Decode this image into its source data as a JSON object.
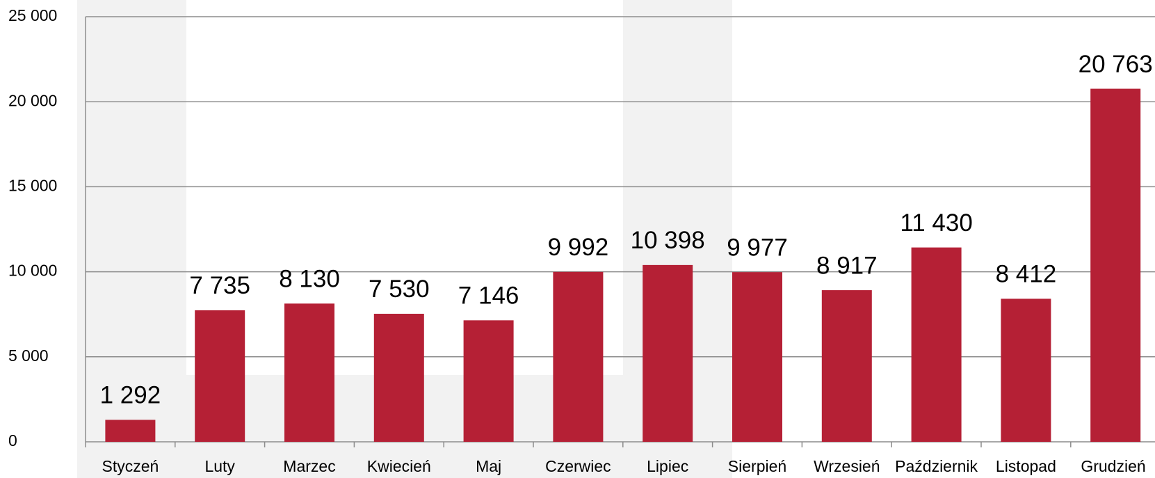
{
  "chart_data": {
    "type": "bar",
    "categories": [
      "Styczeń",
      "Luty",
      "Marzec",
      "Kwiecień",
      "Maj",
      "Czerwiec",
      "Lipiec",
      "Sierpień",
      "Wrzesień",
      "Październik",
      "Listopad",
      "Grudzień"
    ],
    "values": [
      1292,
      7735,
      8130,
      7530,
      7146,
      9992,
      10398,
      9977,
      8917,
      11430,
      8412,
      20763
    ],
    "value_labels": [
      "1 292",
      "7 735",
      "8 130",
      "7 530",
      "7 146",
      "9 992",
      "10 398",
      "9 977",
      "8 917",
      "11 430",
      "8 412",
      "20 763"
    ],
    "color": "#b52035",
    "ylim": [
      0,
      25000
    ],
    "yticks": [
      0,
      {
        "value": 5000,
        "label": "5 000"
      },
      {
        "value": 10000,
        "label": "10 000"
      },
      {
        "value": 15000,
        "label": "15 000"
      },
      {
        "value": 20000,
        "label": "20 000"
      },
      {
        "value": 25000,
        "label": "25 000"
      }
    ],
    "grid": true
  }
}
